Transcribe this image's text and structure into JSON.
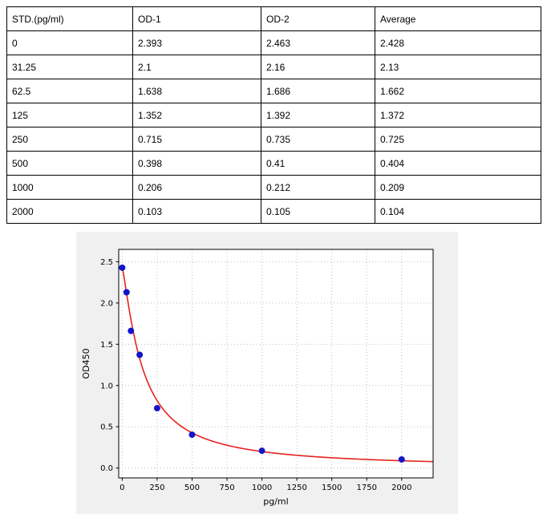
{
  "table": {
    "columns": [
      "STD.(pg/ml)",
      "OD-1",
      "OD-2",
      "Average"
    ],
    "rows": [
      [
        "0",
        "2.393",
        "2.463",
        "2.428"
      ],
      [
        "31.25",
        "2.1",
        "2.16",
        "2.13"
      ],
      [
        "62.5",
        "1.638",
        "1.686",
        "1.662"
      ],
      [
        "125",
        "1.352",
        "1.392",
        "1.372"
      ],
      [
        "250",
        "0.715",
        "0.735",
        "0.725"
      ],
      [
        "500",
        "0.398",
        "0.41",
        "0.404"
      ],
      [
        "1000",
        "0.206",
        "0.212",
        "0.209"
      ],
      [
        "2000",
        "0.103",
        "0.105",
        "0.104"
      ]
    ]
  },
  "chart_data": {
    "type": "scatter",
    "title": "",
    "xlabel": "pg/ml",
    "ylabel": "OD450",
    "x": [
      0,
      31.25,
      62.5,
      125,
      250,
      500,
      1000,
      2000
    ],
    "y": [
      2.428,
      2.13,
      1.662,
      1.372,
      0.725,
      0.404,
      0.209,
      0.104
    ],
    "fit_curve": {
      "type": "4PL",
      "a": 2.43,
      "b": 1.25,
      "c": 145,
      "d": 0.0
    },
    "xlim": [
      -25,
      2225
    ],
    "ylim": [
      -0.12,
      2.65
    ],
    "xticks": [
      0,
      250,
      500,
      750,
      1000,
      1250,
      1500,
      1750,
      2000
    ],
    "yticks": [
      0.0,
      0.5,
      1.0,
      1.5,
      2.0,
      2.5
    ],
    "grid": true,
    "legend": false,
    "point_color": "#1414cc",
    "curve_color": "#e5231e",
    "panel_bg": "#f0f0f0",
    "plot_bg": "#ffffff",
    "grid_color": "#bfbfbf"
  }
}
